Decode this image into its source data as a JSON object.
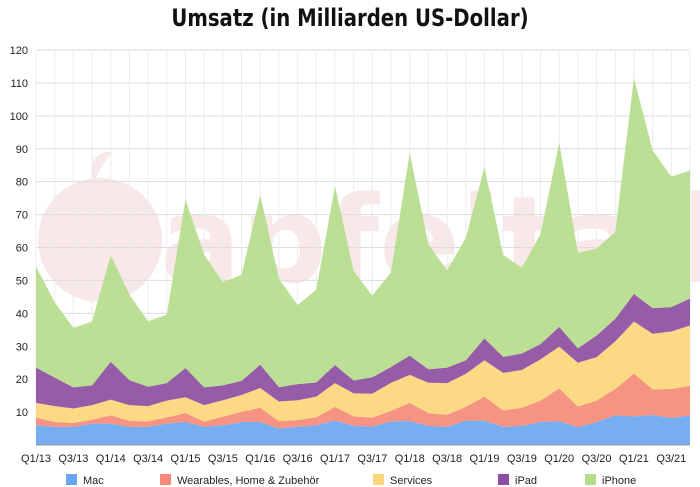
{
  "chart_data": {
    "type": "area",
    "stacked": true,
    "title": "Umsatz (in Milliarden US-Dollar)",
    "ylim": [
      0,
      120
    ],
    "yticks": [
      10,
      20,
      30,
      40,
      50,
      60,
      70,
      80,
      90,
      100,
      110,
      120
    ],
    "grid": true,
    "legend_position": "bottom",
    "watermark": "apfeltalk",
    "categories": [
      "Q1/13",
      "Q2/13",
      "Q3/13",
      "Q4/13",
      "Q1/14",
      "Q2/14",
      "Q3/14",
      "Q4/14",
      "Q1/15",
      "Q2/15",
      "Q3/15",
      "Q4/15",
      "Q1/16",
      "Q2/16",
      "Q3/16",
      "Q4/16",
      "Q1/17",
      "Q2/17",
      "Q3/17",
      "Q4/17",
      "Q1/18",
      "Q2/18",
      "Q3/18",
      "Q4/18",
      "Q1/19",
      "Q2/19",
      "Q3/19",
      "Q4/19",
      "Q1/20",
      "Q2/20",
      "Q3/20",
      "Q4/20",
      "Q1/21",
      "Q2/21",
      "Q3/21",
      "Q4/21"
    ],
    "x_tick_labels": [
      "Q1/13",
      "Q3/13",
      "Q1/14",
      "Q3/14",
      "Q1/15",
      "Q3/15",
      "Q1/16",
      "Q3/16",
      "Q1/17",
      "Q3/17",
      "Q1/18",
      "Q3/18",
      "Q1/19",
      "Q3/19",
      "Q1/20",
      "Q3/20",
      "Q1/21",
      "Q3/21"
    ],
    "series": [
      {
        "name": "Mac",
        "color": "#6aa7f0",
        "values": [
          6,
          5.5,
          5.5,
          6.5,
          6.5,
          5.5,
          5.5,
          6.5,
          7,
          5.5,
          6,
          7,
          7,
          5,
          5.5,
          6,
          7.5,
          5.8,
          5.6,
          7.2,
          7.3,
          5.8,
          5.5,
          7.4,
          7.4,
          5.5,
          5.8,
          7,
          7.2,
          5.4,
          7,
          9,
          8.7,
          9.1,
          8.2,
          9
        ]
      },
      {
        "name": "Wearables, Home & Zubehör",
        "color": "#f58a78",
        "values": [
          2.3,
          1.5,
          1.2,
          1.2,
          2.5,
          1.8,
          1.7,
          1.9,
          2.7,
          1.6,
          2.6,
          3.1,
          4.3,
          2.2,
          2.1,
          2.4,
          4.1,
          2.9,
          2.7,
          3.2,
          5.5,
          3.9,
          3.7,
          4.2,
          7.3,
          5,
          5.5,
          6.5,
          10,
          6.3,
          6.5,
          8,
          13,
          7.8,
          8.8,
          9
        ]
      },
      {
        "name": "Services",
        "color": "#fcd67a",
        "values": [
          4.5,
          4.8,
          4.4,
          4.4,
          4.8,
          4.8,
          4.6,
          5.1,
          4.8,
          5,
          5,
          5.1,
          6,
          6,
          6,
          6.3,
          7.2,
          7,
          7.3,
          8.5,
          8.5,
          9.2,
          9.6,
          10,
          11,
          11.4,
          11.5,
          12.5,
          12.7,
          13.3,
          13.2,
          14.5,
          15.8,
          16.9,
          17.5,
          18.3
        ]
      },
      {
        "name": "iPad",
        "color": "#8e4ea0",
        "values": [
          10.7,
          8.7,
          6.4,
          6,
          11.5,
          7.6,
          5.9,
          5.3,
          8.9,
          5.4,
          4.5,
          4.3,
          7.1,
          4.4,
          4.9,
          4.3,
          5.5,
          3.9,
          4.97,
          4.8,
          5.86,
          4.1,
          4.7,
          4.1,
          6.7,
          4.87,
          5,
          4.66,
          5.98,
          4.37,
          6.58,
          6.8,
          8.4,
          7.8,
          7.4,
          8.2
        ]
      },
      {
        "name": "iPhone",
        "color": "#b4dc8c",
        "values": [
          30.7,
          22.9,
          18.1,
          19.4,
          32.3,
          26,
          19.9,
          20.8,
          51.2,
          40.3,
          31.4,
          32.2,
          51.6,
          32.9,
          24,
          28.2,
          54.4,
          33.2,
          24.8,
          28.8,
          61.6,
          38,
          29.5,
          37.2,
          52,
          31,
          26,
          33.4,
          56,
          29,
          26.4,
          26.4,
          65.6,
          47.9,
          39.6,
          38.9
        ]
      }
    ]
  }
}
